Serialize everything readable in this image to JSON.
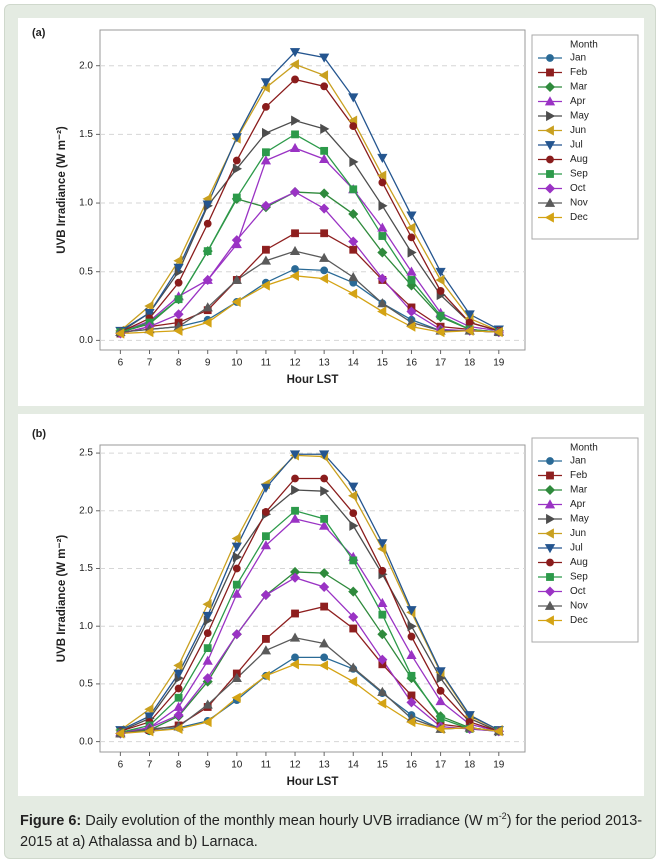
{
  "chart_data": [
    {
      "type": "line",
      "panel_label": "(a)",
      "xlabel": "Hour LST",
      "ylabel": "UVB Irradiance (W m⁻²)",
      "legend_title": "Month",
      "legend": "right",
      "grid": true,
      "xlim": [
        5.3,
        19.9
      ],
      "xticks": [
        6,
        7,
        8,
        9,
        10,
        11,
        12,
        13,
        14,
        15,
        16,
        17,
        18,
        19
      ],
      "ylim": [
        -0.07,
        2.26
      ],
      "yticks": [
        {
          "value": 0,
          "label": "0.0"
        },
        0.5,
        {
          "value": 1,
          "label": "1.0"
        },
        1.5,
        {
          "value": 2,
          "label": "2.0"
        }
      ],
      "x": [
        6,
        7,
        8,
        9,
        10,
        11,
        12,
        13,
        14,
        15,
        16,
        17,
        18,
        19
      ],
      "series": [
        {
          "name": "Jan",
          "color": "#2a6a96",
          "marker": "circle",
          "values": [
            0.06,
            0.08,
            0.1,
            0.15,
            0.28,
            0.42,
            0.52,
            0.51,
            0.42,
            0.27,
            0.15,
            0.07,
            0.07,
            0.06
          ]
        },
        {
          "name": "Feb",
          "color": "#8e1f1f",
          "marker": "square",
          "values": [
            0.05,
            0.1,
            0.13,
            0.22,
            0.44,
            0.66,
            0.78,
            0.78,
            0.66,
            0.44,
            0.24,
            0.1,
            0.08,
            0.06
          ]
        },
        {
          "name": "Mar",
          "color": "#2f8a3c",
          "marker": "diamond",
          "values": [
            0.06,
            0.12,
            0.3,
            0.65,
            1.03,
            0.97,
            1.08,
            1.07,
            0.92,
            0.64,
            0.4,
            0.17,
            0.08,
            0.06
          ]
        },
        {
          "name": "Apr",
          "color": "#9a33c4",
          "marker": "up",
          "values": [
            0.06,
            0.14,
            0.32,
            0.44,
            0.7,
            1.31,
            1.4,
            1.32,
            1.1,
            0.82,
            0.5,
            0.2,
            0.1,
            0.07
          ]
        },
        {
          "name": "May",
          "color": "#4d4d4d",
          "marker": "right",
          "values": [
            0.06,
            0.2,
            0.5,
            0.98,
            1.25,
            1.51,
            1.6,
            1.54,
            1.3,
            0.98,
            0.64,
            0.33,
            0.13,
            0.07
          ]
        },
        {
          "name": "Jun",
          "color": "#c9a020",
          "marker": "left",
          "values": [
            0.07,
            0.25,
            0.58,
            1.03,
            1.47,
            1.84,
            2.01,
            1.93,
            1.6,
            1.2,
            0.82,
            0.44,
            0.16,
            0.07
          ]
        },
        {
          "name": "Jul",
          "color": "#24558f",
          "marker": "down",
          "values": [
            0.07,
            0.2,
            0.53,
            0.99,
            1.48,
            1.88,
            2.1,
            2.06,
            1.77,
            1.33,
            0.91,
            0.5,
            0.19,
            0.08
          ]
        },
        {
          "name": "Aug",
          "color": "#8a1c1c",
          "marker": "circle",
          "values": [
            0.06,
            0.16,
            0.42,
            0.85,
            1.31,
            1.7,
            1.9,
            1.85,
            1.56,
            1.15,
            0.75,
            0.36,
            0.13,
            0.07
          ]
        },
        {
          "name": "Sep",
          "color": "#2c9a4a",
          "marker": "square",
          "values": [
            0.06,
            0.13,
            0.3,
            0.65,
            1.04,
            1.37,
            1.5,
            1.38,
            1.1,
            0.76,
            0.44,
            0.18,
            0.08,
            0.06
          ]
        },
        {
          "name": "Oct",
          "color": "#9a33c4",
          "marker": "diamond",
          "values": [
            0.05,
            0.1,
            0.19,
            0.44,
            0.73,
            0.98,
            1.08,
            0.96,
            0.72,
            0.45,
            0.21,
            0.08,
            0.07,
            0.06
          ]
        },
        {
          "name": "Nov",
          "color": "#5a5a5a",
          "marker": "up",
          "values": [
            0.06,
            0.08,
            0.1,
            0.24,
            0.44,
            0.58,
            0.65,
            0.6,
            0.46,
            0.27,
            0.13,
            0.07,
            0.07,
            0.06
          ]
        },
        {
          "name": "Dec",
          "color": "#d4a314",
          "marker": "left",
          "values": [
            0.05,
            0.06,
            0.07,
            0.13,
            0.28,
            0.4,
            0.47,
            0.45,
            0.34,
            0.21,
            0.1,
            0.06,
            0.07,
            0.06
          ]
        }
      ]
    },
    {
      "type": "line",
      "panel_label": "(b)",
      "xlabel": "Hour LST",
      "ylabel": "UVB Irradiance (W m⁻²)",
      "legend_title": "Month",
      "legend": "right",
      "grid": true,
      "xlim": [
        5.3,
        19.9
      ],
      "xticks": [
        6,
        7,
        8,
        9,
        10,
        11,
        12,
        13,
        14,
        15,
        16,
        17,
        18,
        19
      ],
      "ylim": [
        -0.09,
        2.57
      ],
      "yticks": [
        {
          "value": 0,
          "label": "0.0"
        },
        0.5,
        {
          "value": 1,
          "label": "1.0"
        },
        1.5,
        {
          "value": 2,
          "label": "2.0"
        },
        2.5
      ],
      "x": [
        6,
        7,
        8,
        9,
        10,
        11,
        12,
        13,
        14,
        15,
        16,
        17,
        18,
        19
      ],
      "series": [
        {
          "name": "Jan",
          "color": "#2a6a96",
          "marker": "circle",
          "values": [
            0.08,
            0.09,
            0.12,
            0.18,
            0.36,
            0.57,
            0.73,
            0.73,
            0.63,
            0.42,
            0.23,
            0.11,
            0.12,
            0.09
          ]
        },
        {
          "name": "Feb",
          "color": "#8e1f1f",
          "marker": "square",
          "values": [
            0.07,
            0.1,
            0.14,
            0.3,
            0.59,
            0.89,
            1.11,
            1.17,
            0.98,
            0.67,
            0.4,
            0.15,
            0.12,
            0.09
          ]
        },
        {
          "name": "Mar",
          "color": "#2f8a3c",
          "marker": "diamond",
          "values": [
            0.07,
            0.1,
            0.22,
            0.52,
            0.93,
            1.27,
            1.47,
            1.46,
            1.3,
            0.93,
            0.55,
            0.22,
            0.12,
            0.09
          ]
        },
        {
          "name": "Apr",
          "color": "#9a33c4",
          "marker": "up",
          "values": [
            0.08,
            0.12,
            0.3,
            0.7,
            1.28,
            1.7,
            1.93,
            1.87,
            1.6,
            1.2,
            0.75,
            0.35,
            0.15,
            0.09
          ]
        },
        {
          "name": "May",
          "color": "#4d4d4d",
          "marker": "right",
          "values": [
            0.09,
            0.2,
            0.55,
            1.05,
            1.6,
            1.97,
            2.18,
            2.17,
            1.87,
            1.45,
            1.0,
            0.55,
            0.2,
            0.09
          ]
        },
        {
          "name": "Jun",
          "color": "#c9a020",
          "marker": "left",
          "values": [
            0.1,
            0.28,
            0.66,
            1.19,
            1.76,
            2.23,
            2.48,
            2.47,
            2.13,
            1.67,
            1.12,
            0.6,
            0.22,
            0.1
          ]
        },
        {
          "name": "Jul",
          "color": "#24558f",
          "marker": "down",
          "values": [
            0.1,
            0.22,
            0.59,
            1.09,
            1.69,
            2.2,
            2.49,
            2.49,
            2.21,
            1.72,
            1.14,
            0.61,
            0.23,
            0.1
          ]
        },
        {
          "name": "Aug",
          "color": "#8a1c1c",
          "marker": "circle",
          "values": [
            0.09,
            0.17,
            0.46,
            0.94,
            1.5,
            1.99,
            2.28,
            2.28,
            1.98,
            1.48,
            0.91,
            0.44,
            0.17,
            0.09
          ]
        },
        {
          "name": "Sep",
          "color": "#2c9a4a",
          "marker": "square",
          "values": [
            0.08,
            0.14,
            0.38,
            0.81,
            1.36,
            1.78,
            2.0,
            1.93,
            1.57,
            1.1,
            0.57,
            0.2,
            0.11,
            0.09
          ]
        },
        {
          "name": "Oct",
          "color": "#9a33c4",
          "marker": "diamond",
          "values": [
            0.07,
            0.12,
            0.23,
            0.55,
            0.93,
            1.27,
            1.42,
            1.34,
            1.08,
            0.71,
            0.34,
            0.13,
            0.11,
            0.09
          ]
        },
        {
          "name": "Nov",
          "color": "#5a5a5a",
          "marker": "up",
          "values": [
            0.07,
            0.11,
            0.13,
            0.32,
            0.55,
            0.79,
            0.9,
            0.85,
            0.64,
            0.43,
            0.2,
            0.11,
            0.12,
            0.09
          ]
        },
        {
          "name": "Dec",
          "color": "#d4a314",
          "marker": "left",
          "values": [
            0.07,
            0.09,
            0.11,
            0.17,
            0.38,
            0.57,
            0.67,
            0.66,
            0.52,
            0.33,
            0.17,
            0.11,
            0.12,
            0.09
          ]
        }
      ]
    }
  ],
  "caption": {
    "label": "Figure 6:",
    "text": " Daily evolution of the monthly mean hourly UVB irradiance (W m",
    "sup": "-2",
    "text_end": ") for the period 2013-2015 at a) Athalassa and b) Larnaca."
  }
}
